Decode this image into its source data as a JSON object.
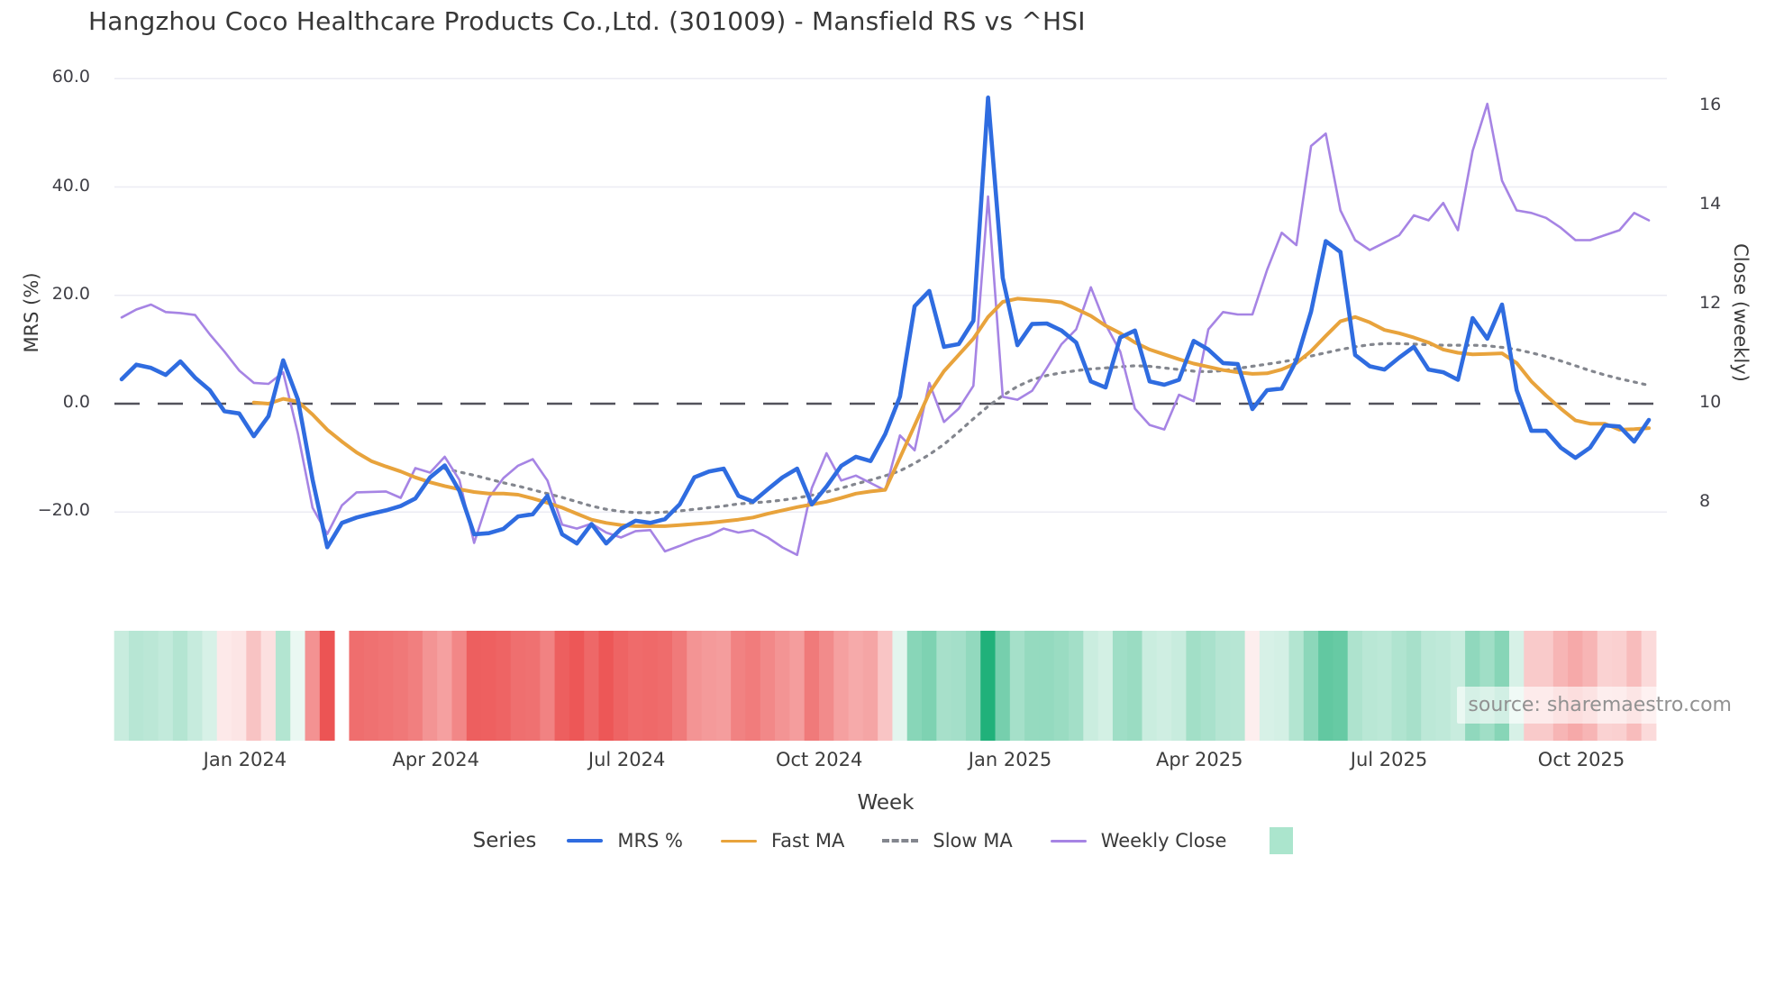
{
  "legend": {
    "title": "Series"
  },
  "chart_data": {
    "type": "line",
    "title": "Hangzhou Coco Healthcare Products Co.,Ltd. (301009) - Mansfield RS vs ^HSI",
    "x_axis": {
      "label": "Week",
      "ticks": [
        {
          "label": "Jan 2024",
          "week": 8.4
        },
        {
          "label": "Apr 2024",
          "week": 21.4
        },
        {
          "label": "Jul 2024",
          "week": 34.4
        },
        {
          "label": "Oct 2024",
          "week": 47.5
        },
        {
          "label": "Jan 2025",
          "week": 60.5
        },
        {
          "label": "Apr 2025",
          "week": 73.4
        },
        {
          "label": "Jul 2025",
          "week": 86.3
        },
        {
          "label": "Oct 2025",
          "week": 99.4
        }
      ]
    },
    "y_left": {
      "label": "MRS (%)",
      "ticks": [
        {
          "label": "60.0",
          "value": 60
        },
        {
          "label": "40.0",
          "value": 40
        },
        {
          "label": "20.0",
          "value": 20
        },
        {
          "label": "0.0",
          "value": 0
        },
        {
          "label": "−20.0",
          "value": -20
        }
      ]
    },
    "y_right": {
      "label": "Close (weekly)",
      "ticks": [
        {
          "label": "16",
          "value": 16
        },
        {
          "label": "14",
          "value": 14
        },
        {
          "label": "12",
          "value": 12
        },
        {
          "label": "10",
          "value": 10
        },
        {
          "label": "8",
          "value": 8
        }
      ]
    },
    "weeks_last_index": 104,
    "zero_line": {
      "axis": "left",
      "value": 0
    },
    "source_text": "source: sharemaestro.com",
    "series": [
      {
        "name": "MRS %",
        "axis": "left",
        "style": "solid",
        "color": "#2f6ce0",
        "width": 4.6,
        "values": [
          4.5,
          7.2,
          6.6,
          5.3,
          7.8,
          4.8,
          2.5,
          -1.4,
          -1.8,
          -6.0,
          -2.3,
          8.0,
          0.8,
          -14.0,
          -26.5,
          -22.0,
          -21.0,
          -20.3,
          -19.7,
          -18.9,
          -17.5,
          -13.6,
          -11.4,
          -16.1,
          -24.1,
          -23.9,
          -23.1,
          -20.8,
          -20.4,
          -17.0,
          -24.1,
          -25.8,
          -22.2,
          -25.8,
          -23.1,
          -21.6,
          -22.0,
          -21.3,
          -18.6,
          -13.6,
          -12.5,
          -12.0,
          -17.0,
          -18.1,
          -15.8,
          -13.6,
          -12.0,
          -18.6,
          -15.3,
          -11.5,
          -9.8,
          -10.6,
          -5.6,
          1.3,
          18.0,
          20.8,
          10.5,
          11.0,
          15.3,
          56.5,
          23.2,
          10.8,
          14.7,
          14.8,
          13.5,
          11.3,
          4.1,
          3.0,
          12.2,
          13.5,
          4.1,
          3.5,
          4.4,
          11.6,
          10.0,
          7.5,
          7.3,
          -1.0,
          2.5,
          2.8,
          8.0,
          17.0,
          30.0,
          28.0,
          9.0,
          6.9,
          6.3,
          8.5,
          10.5,
          6.3,
          5.8,
          4.4,
          15.8,
          12.0,
          18.3,
          2.5,
          -5.0,
          -5.0,
          -8.1,
          -10.0,
          -8.1,
          -4.0,
          -4.2,
          -7.0,
          -3.0
        ]
      },
      {
        "name": "Fast MA",
        "axis": "left",
        "style": "solid",
        "color": "#e8a33c",
        "width": 4.0,
        "values": [
          null,
          null,
          null,
          null,
          null,
          null,
          null,
          null,
          null,
          0.2,
          0.0,
          0.9,
          0.4,
          -2.0,
          -4.8,
          -7.0,
          -9.0,
          -10.6,
          -11.6,
          -12.5,
          -13.6,
          -14.5,
          -15.2,
          -15.8,
          -16.3,
          -16.6,
          -16.6,
          -16.8,
          -17.5,
          -18.3,
          -19.2,
          -20.3,
          -21.4,
          -22.0,
          -22.4,
          -22.6,
          -22.6,
          -22.6,
          -22.4,
          -22.2,
          -22.0,
          -21.7,
          -21.4,
          -21.0,
          -20.3,
          -19.7,
          -19.1,
          -18.6,
          -18.1,
          -17.4,
          -16.6,
          -16.2,
          -15.9,
          -10.0,
          -4.0,
          2.0,
          6.0,
          9.0,
          12.0,
          16.0,
          18.8,
          19.4,
          19.2,
          19.0,
          18.7,
          17.5,
          16.2,
          14.4,
          13.0,
          11.3,
          10.0,
          9.1,
          8.2,
          7.4,
          6.8,
          6.2,
          5.8,
          5.5,
          5.6,
          6.3,
          7.5,
          9.7,
          12.5,
          15.2,
          16.0,
          15.0,
          13.6,
          13.0,
          12.2,
          11.3,
          10.0,
          9.4,
          9.1,
          9.2,
          9.3,
          7.5,
          4.1,
          1.5,
          -0.9,
          -3.1,
          -3.7,
          -3.7,
          -4.8,
          -4.7,
          -4.5
        ]
      },
      {
        "name": "Slow MA",
        "axis": "left",
        "style": "dotted",
        "color": "#83868e",
        "width": 3.2,
        "values": [
          null,
          null,
          null,
          null,
          null,
          null,
          null,
          null,
          null,
          null,
          null,
          null,
          null,
          null,
          null,
          null,
          null,
          null,
          null,
          null,
          null,
          null,
          -12.0,
          -12.6,
          -13.2,
          -13.9,
          -14.6,
          -15.2,
          -15.9,
          -16.6,
          -17.3,
          -18.1,
          -18.9,
          -19.5,
          -19.9,
          -20.1,
          -20.1,
          -20.0,
          -19.8,
          -19.5,
          -19.2,
          -18.9,
          -18.5,
          -18.3,
          -18.1,
          -17.8,
          -17.4,
          -16.9,
          -16.3,
          -15.6,
          -14.8,
          -14.1,
          -13.3,
          -12.4,
          -11.0,
          -9.4,
          -7.5,
          -5.2,
          -2.8,
          -0.5,
          1.5,
          3.2,
          4.4,
          5.2,
          5.7,
          6.1,
          6.4,
          6.6,
          6.8,
          7.0,
          6.9,
          6.6,
          6.3,
          6.0,
          5.9,
          6.1,
          6.5,
          6.9,
          7.3,
          7.7,
          8.2,
          8.8,
          9.4,
          10.0,
          10.5,
          10.9,
          11.1,
          11.1,
          11.0,
          10.9,
          10.8,
          10.8,
          10.8,
          10.7,
          10.4,
          10.0,
          9.4,
          8.7,
          7.9,
          7.0,
          6.1,
          5.3,
          4.6,
          4.0,
          3.4
        ]
      },
      {
        "name": "Weekly Close",
        "axis": "right",
        "style": "solid",
        "color": "#a684e4",
        "width": 2.6,
        "values": [
          11.74,
          11.9,
          12.0,
          11.85,
          11.83,
          11.79,
          11.4,
          11.05,
          10.67,
          10.42,
          10.4,
          10.63,
          9.4,
          7.9,
          7.37,
          7.95,
          8.21,
          8.22,
          8.23,
          8.1,
          8.7,
          8.61,
          8.93,
          8.46,
          7.19,
          8.1,
          8.5,
          8.75,
          8.88,
          8.45,
          7.56,
          7.48,
          7.58,
          7.4,
          7.3,
          7.43,
          7.45,
          7.02,
          7.13,
          7.25,
          7.34,
          7.48,
          7.4,
          7.45,
          7.3,
          7.1,
          6.95,
          8.3,
          9.0,
          8.45,
          8.55,
          8.4,
          8.25,
          9.36,
          9.06,
          10.42,
          9.63,
          9.9,
          10.36,
          14.18,
          10.14,
          10.08,
          10.26,
          10.72,
          11.2,
          11.5,
          12.35,
          11.6,
          11.05,
          9.9,
          9.57,
          9.48,
          10.18,
          10.05,
          11.5,
          11.85,
          11.8,
          11.8,
          12.7,
          13.45,
          13.2,
          15.2,
          15.45,
          13.9,
          13.3,
          13.1,
          13.25,
          13.4,
          13.8,
          13.7,
          14.05,
          13.5,
          15.1,
          16.05,
          14.5,
          13.9,
          13.85,
          13.75,
          13.55,
          13.3,
          13.3,
          13.4,
          13.5,
          13.85,
          13.7
        ]
      }
    ],
    "heatmap": {
      "positive_color": "#1fb179",
      "negative_color": "#ec5252",
      "positive_cap": 57,
      "negative_cap": 27,
      "legend_swatch_color": "#abe5cd",
      "values": [
        4.5,
        7.2,
        6.6,
        5.3,
        7.8,
        4.8,
        2.5,
        -1.4,
        -1.8,
        -6.0,
        -2.3,
        8.0,
        0.8,
        -14.0,
        -26.5,
        null,
        -21.0,
        -20.3,
        -19.7,
        -18.9,
        -17.5,
        -13.6,
        -11.4,
        -16.1,
        -24.1,
        -23.9,
        -23.1,
        -20.8,
        -20.4,
        -17.0,
        -24.1,
        -25.8,
        -22.2,
        -25.8,
        -23.1,
        -21.6,
        -22.0,
        -21.3,
        -18.6,
        -13.6,
        -12.5,
        -12.0,
        -17.0,
        -18.1,
        -15.8,
        -13.6,
        -12.0,
        -18.6,
        -15.3,
        -11.5,
        -9.8,
        -10.6,
        -5.6,
        1.3,
        18.0,
        20.8,
        10.5,
        11.0,
        15.3,
        56.5,
        23.2,
        10.8,
        14.7,
        14.8,
        13.5,
        11.3,
        4.1,
        3.0,
        12.2,
        13.5,
        4.1,
        3.5,
        4.4,
        11.6,
        10.0,
        7.5,
        7.3,
        -1.0,
        2.5,
        2.8,
        8.0,
        17.0,
        30.0,
        28.0,
        9.0,
        6.9,
        6.3,
        8.5,
        10.5,
        6.3,
        5.8,
        4.4,
        15.8,
        12.0,
        18.3,
        2.5,
        -5.0,
        -5.0,
        -8.1,
        -10.0,
        -8.1,
        -4.0,
        -4.2,
        -7.0,
        -3.0
      ]
    }
  }
}
